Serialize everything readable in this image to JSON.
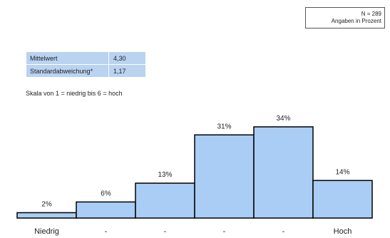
{
  "sample_box": {
    "n_label": "N = 289",
    "unit_label": "Angaben in Prozent"
  },
  "stats": {
    "rows": [
      {
        "label": "Mittelwert",
        "value": "4,30"
      },
      {
        "label": "Standardabweichung*",
        "value": "1,17"
      }
    ]
  },
  "scale_note": "Skala von 1 = niedrig bis 6 = hoch",
  "colors": {
    "bar_fill": "#a9cdf4",
    "bar_stroke": "#000000",
    "stats_bg": "#b9d3f1"
  },
  "chart_data": {
    "type": "bar",
    "categories": [
      "Niedrig",
      "-",
      "-",
      "-",
      "-",
      "Hoch"
    ],
    "values": [
      2,
      6,
      13,
      31,
      34,
      14
    ],
    "value_labels": [
      "2%",
      "6%",
      "13%",
      "31%",
      "34%",
      "14%"
    ],
    "title": "",
    "xlabel": "",
    "ylabel": "",
    "ylim": [
      0,
      34
    ],
    "grid": false
  }
}
